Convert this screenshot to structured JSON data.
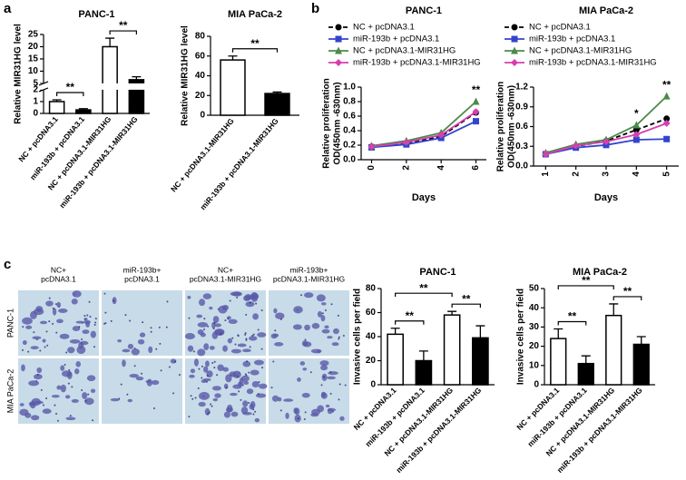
{
  "panel_labels": [
    "a",
    "b",
    "c"
  ],
  "micrographs": {
    "columns": [
      [
        "NC+",
        "pcDNA3.1"
      ],
      [
        "miR-193b+",
        "pcDNA3.1"
      ],
      [
        "NC+",
        "pcDNA3.1-MIR31HG"
      ],
      [
        "miR-193b+",
        "pcDNA3.1-MIR31HG"
      ]
    ],
    "rows": [
      "PANC-1",
      "MIA PaCa-2"
    ]
  },
  "chart_data": [
    {
      "type": "bar",
      "title": "PANC-1",
      "y_label": [
        "Relative MIR31HG level"
      ],
      "categories": [
        "NC + pcDNA3.1",
        "miR-193b + pcDNA3.1",
        "NC + pcDNA3.1-MIR31HG",
        "miR-193b + pcDNA3.1-MIR31HG"
      ],
      "values": [
        1,
        0.3,
        20,
        6.5
      ],
      "errors": [
        0.15,
        0.1,
        3.5,
        1.2
      ],
      "colors": [
        "#ffffff",
        "#000000",
        "#ffffff",
        "#000000"
      ],
      "ylim": [
        0,
        25
      ],
      "ybreak": [
        2,
        5
      ],
      "yticks": [
        0,
        1,
        2,
        5,
        10,
        15,
        20,
        25
      ],
      "significance": [
        {
          "label": "**",
          "pair": [
            0,
            1
          ]
        },
        {
          "label": "**",
          "pair": [
            2,
            3
          ]
        }
      ]
    },
    {
      "type": "bar",
      "title": "MIA PaCa-2",
      "y_label": [
        "Relative MIR31HG level"
      ],
      "categories": [
        "NC + pcDNA3.1-MIR31HG",
        "miR-193b + pcDNA3.1-MIR31HG"
      ],
      "values": [
        56,
        22
      ],
      "errors": [
        4,
        1.5
      ],
      "colors": [
        "#ffffff",
        "#000000"
      ],
      "ylim": [
        0,
        80
      ],
      "yticks": [
        0,
        20,
        40,
        60,
        80
      ],
      "significance": [
        {
          "label": "**",
          "pair": [
            0,
            1
          ]
        }
      ]
    },
    {
      "type": "line",
      "title": "PANC-1",
      "x_label": "Days",
      "y_label": [
        "Relative proliferation",
        "OD(450nm -630nm)"
      ],
      "x": [
        0,
        2,
        4,
        6
      ],
      "xlim": [
        -0.6,
        6.6
      ],
      "xticks": [
        0,
        2,
        4,
        6
      ],
      "ylim": [
        0,
        1
      ],
      "yticks": [
        {
          "value": 0,
          "label": "0.0"
        },
        {
          "value": 0.2,
          "label": "0.2"
        },
        {
          "value": 0.4,
          "label": "0.4"
        },
        {
          "value": 0.6,
          "label": "0.6"
        },
        {
          "value": 0.8,
          "label": "0.8"
        },
        {
          "value": 1,
          "label": "1.0"
        }
      ],
      "series": [
        {
          "name": "NC + pcDNA3.1",
          "color": "#000000",
          "marker": "circle",
          "dash": true,
          "values": [
            0.18,
            0.23,
            0.32,
            0.65
          ]
        },
        {
          "name": "miR-193b + pcDNA3.1",
          "color": "#3344cc",
          "marker": "square",
          "dash": false,
          "values": [
            0.17,
            0.21,
            0.3,
            0.53
          ]
        },
        {
          "name": "NC + pcDNA3.1-MIR31HG",
          "color": "#4a8a4a",
          "marker": "triangle",
          "dash": false,
          "values": [
            0.19,
            0.26,
            0.37,
            0.8
          ]
        },
        {
          "name": "miR-193b + pcDNA3.1-MIR31HG",
          "color": "#d63fb0",
          "marker": "diamond",
          "dash": false,
          "values": [
            0.18,
            0.24,
            0.34,
            0.66
          ]
        }
      ],
      "annotations": [
        {
          "label": "**",
          "x": 6
        }
      ]
    },
    {
      "type": "line",
      "title": "MIA PaCa-2",
      "x_label": "Days",
      "y_label": [
        "Relative proliferation",
        "OD(450nm -630nm)"
      ],
      "x": [
        1,
        2,
        3,
        4,
        5
      ],
      "xlim": [
        0.6,
        5.4
      ],
      "xticks": [
        1,
        2,
        3,
        4,
        5
      ],
      "ylim": [
        0,
        1.2
      ],
      "yticks": [
        {
          "value": 0,
          "label": "0.0"
        },
        {
          "value": 0.3,
          "label": "0.3"
        },
        {
          "value": 0.6,
          "label": "0.6"
        },
        {
          "value": 0.9,
          "label": "0.9"
        },
        {
          "value": 1.2,
          "label": "1.2"
        }
      ],
      "series": [
        {
          "name": "NC + pcDNA3.1",
          "color": "#000000",
          "marker": "circle",
          "dash": true,
          "values": [
            0.18,
            0.3,
            0.38,
            0.55,
            0.72
          ]
        },
        {
          "name": "miR-193b + pcDNA3.1",
          "color": "#3344cc",
          "marker": "square",
          "dash": false,
          "values": [
            0.18,
            0.28,
            0.32,
            0.4,
            0.41
          ]
        },
        {
          "name": "NC + pcDNA3.1-MIR31HG",
          "color": "#4a8a4a",
          "marker": "triangle",
          "dash": false,
          "values": [
            0.2,
            0.33,
            0.4,
            0.62,
            1.06
          ]
        },
        {
          "name": "miR-193b + pcDNA3.1-MIR31HG",
          "color": "#d63fb0",
          "marker": "diamond",
          "dash": false,
          "values": [
            0.18,
            0.31,
            0.37,
            0.48,
            0.65
          ]
        }
      ],
      "annotations": [
        {
          "label": "*",
          "x": 4
        },
        {
          "label": "**",
          "x": 5
        }
      ]
    },
    {
      "type": "bar",
      "title": "PANC-1",
      "y_label": [
        "Invasive cells per field"
      ],
      "categories": [
        "NC + pcDNA3.1",
        "miR-193b + pcDNA3.1",
        "NC + pcDNA3.1-MIR31HG",
        "miR-193b + pcDNA3.1-MIR31HG"
      ],
      "values": [
        42,
        20,
        58,
        39
      ],
      "errors": [
        5,
        8,
        3,
        10
      ],
      "colors": [
        "#ffffff",
        "#000000",
        "#ffffff",
        "#000000"
      ],
      "ylim": [
        0,
        80
      ],
      "yticks": [
        0,
        20,
        40,
        60,
        80
      ],
      "significance": [
        {
          "label": "**",
          "pair": [
            0,
            1
          ]
        },
        {
          "label": "**",
          "pair": [
            0,
            2
          ]
        },
        {
          "label": "**",
          "pair": [
            2,
            3
          ]
        }
      ]
    },
    {
      "type": "bar",
      "title": "MIA PaCa-2",
      "y_label": [
        "Invasive cells per field"
      ],
      "categories": [
        "NC + pcDNA3.1",
        "miR-193b + pcDNA3.1",
        "NC + pcDNA3.1-MIR31HG",
        "miR-193b + pcDNA3.1-MIR31HG"
      ],
      "values": [
        24,
        11,
        36,
        21
      ],
      "errors": [
        5,
        4,
        6,
        4
      ],
      "colors": [
        "#ffffff",
        "#000000",
        "#ffffff",
        "#000000"
      ],
      "ylim": [
        0,
        50
      ],
      "yticks": [
        0,
        10,
        20,
        30,
        40,
        50
      ],
      "significance": [
        {
          "label": "**",
          "pair": [
            0,
            1
          ]
        },
        {
          "label": "**",
          "pair": [
            0,
            2
          ]
        },
        {
          "label": "**",
          "pair": [
            2,
            3
          ]
        }
      ]
    }
  ]
}
